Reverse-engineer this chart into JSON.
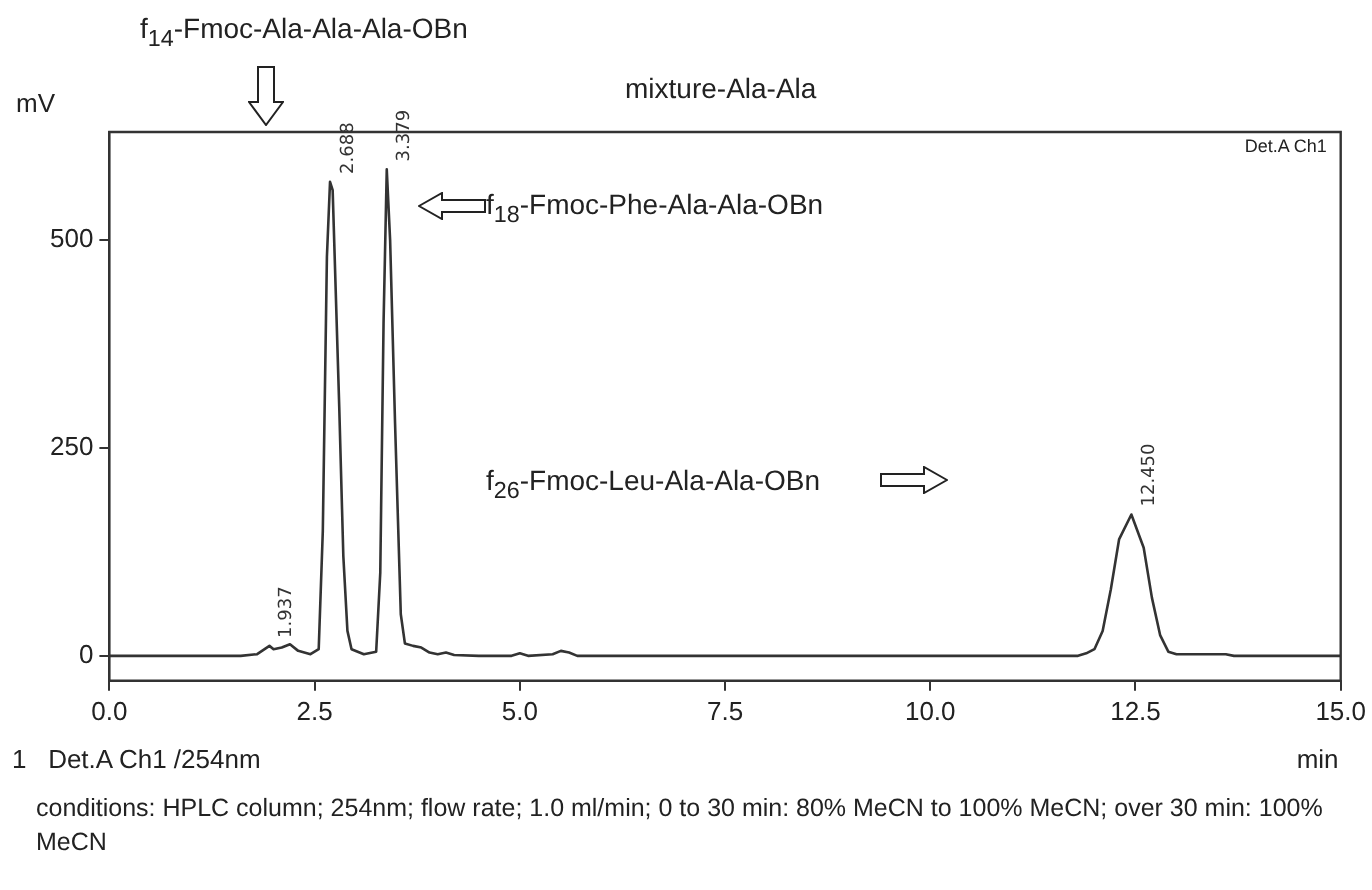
{
  "chart_data": {
    "type": "line",
    "title": "mixture-Ala-Ala",
    "ylabel": "mV",
    "xlabel": "min",
    "x": [
      0,
      1.6,
      1.8,
      1.95,
      2.0,
      2.1,
      2.2,
      2.3,
      2.45,
      2.55,
      2.6,
      2.65,
      2.688,
      2.72,
      2.8,
      2.85,
      2.9,
      2.95,
      3.1,
      3.25,
      3.3,
      3.34,
      3.379,
      3.42,
      3.48,
      3.55,
      3.6,
      3.7,
      3.8,
      3.9,
      4.0,
      4.1,
      4.2,
      4.5,
      4.9,
      5.0,
      5.1,
      5.4,
      5.5,
      5.6,
      5.7,
      7,
      11.8,
      11.9,
      12.0,
      12.1,
      12.2,
      12.3,
      12.45,
      12.6,
      12.7,
      12.8,
      12.9,
      13.0,
      13.6,
      13.7,
      15
    ],
    "series": [
      {
        "color": "#333333",
        "values": [
          0,
          0,
          2,
          12,
          8,
          10,
          14,
          6,
          2,
          8,
          150,
          480,
          570,
          560,
          300,
          120,
          30,
          8,
          2,
          5,
          100,
          400,
          585,
          500,
          280,
          50,
          15,
          12,
          10,
          4,
          2,
          4,
          1,
          0,
          0,
          3,
          0,
          2,
          6,
          4,
          0,
          0,
          0,
          3,
          8,
          30,
          80,
          140,
          170,
          130,
          70,
          25,
          5,
          2,
          2,
          0,
          0
        ]
      }
    ],
    "xlim": [
      0,
      15
    ],
    "xticks": [
      {
        "value": 0,
        "label": "0.0"
      },
      {
        "value": 2.5,
        "label": "2.5"
      },
      {
        "value": 5,
        "label": "5.0"
      },
      {
        "value": 7.5,
        "label": "7.5"
      },
      {
        "value": 10,
        "label": "10.0"
      },
      {
        "value": 12.5,
        "label": "12.5"
      },
      {
        "value": 15,
        "label": "15.0"
      }
    ],
    "ylim": [
      -30,
      630
    ],
    "yticks": [
      0,
      250,
      500
    ],
    "grid": false,
    "legend": false,
    "line_style": "solid",
    "marker": "none",
    "annotations": [
      {
        "text": "2.688",
        "x": 2.688,
        "y": 570
      },
      {
        "text": "3.379",
        "x": 3.379,
        "y": 585
      },
      {
        "text": "1.937",
        "x": 1.937,
        "y": 12
      },
      {
        "text": "12.450",
        "x": 12.45,
        "y": 170
      },
      "f$_{14}$-Fmoc-Ala-Ala-Ala-OBn",
      "f$_{18}$-Fmoc-Phe-Ala-Ala-OBn",
      "f$_{26}$-Fmoc-Leu-Ala-Ala-OBn",
      "Det.A Ch1",
      "1   Det.A Ch1 /254nm",
      "conditions: HPLC column; 254nm; flow rate; 1.0 ml/min; 0 to 30 min: 80% MeCN to 100% MeCN; over 30 min: 100% MeCN"
    ]
  }
}
